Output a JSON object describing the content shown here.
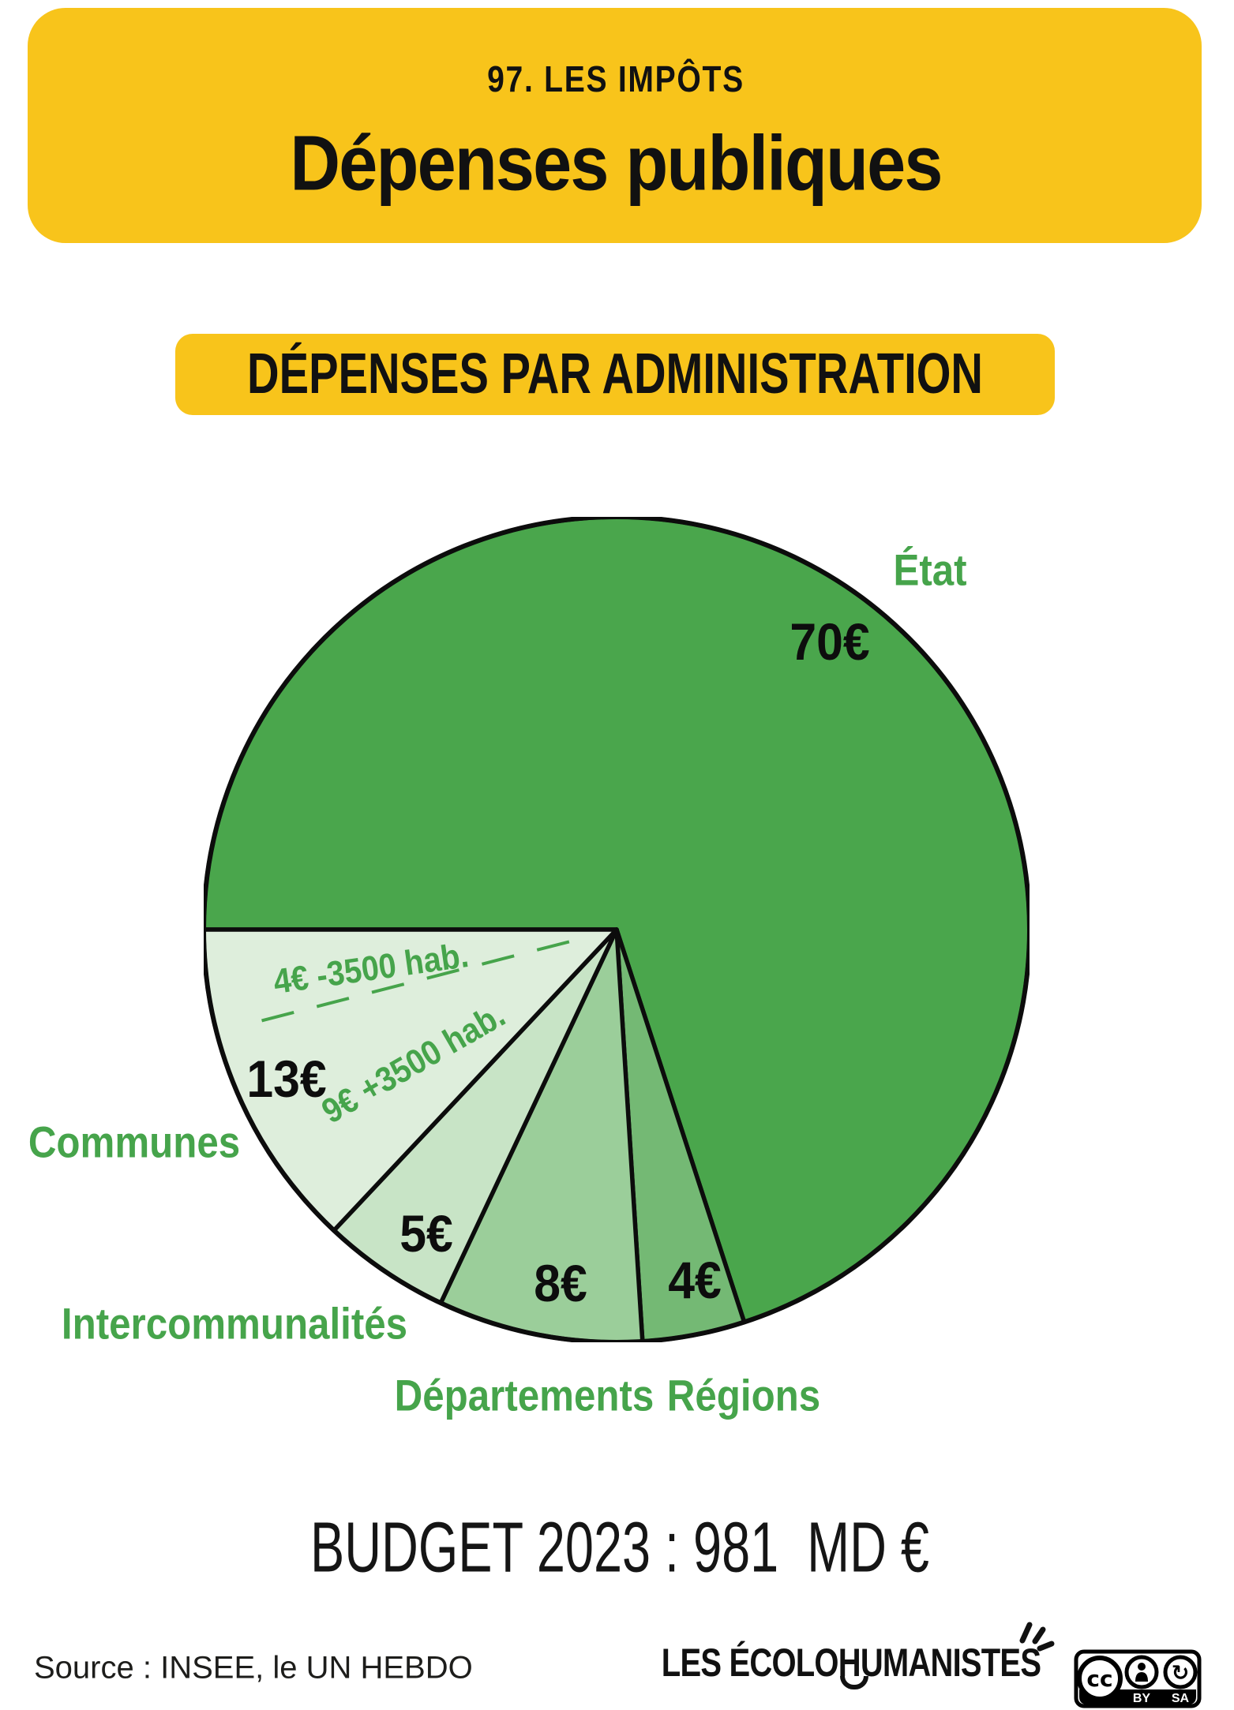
{
  "header": {
    "kicker": "97. LES IMPÔTS",
    "title": "Dépenses publiques"
  },
  "section_title": "DÉPENSES PAR ADMINISTRATION",
  "chart_data": {
    "type": "pie",
    "title": "DÉPENSES PAR ADMINISTRATION",
    "unit": "€",
    "start_angle_deg": 270,
    "direction": "clockwise",
    "legend_position": "around",
    "segments": [
      {
        "label": "État",
        "value": 70,
        "value_label": "70€",
        "color": "#4AA64C"
      },
      {
        "label": "Régions",
        "value": 4,
        "value_label": "4€",
        "color": "#74B974"
      },
      {
        "label": "Départements",
        "value": 8,
        "value_label": "8€",
        "color": "#9BCE9A"
      },
      {
        "label": "Intercommunalités",
        "value": 5,
        "value_label": "5€",
        "color": "#C8E4C6"
      },
      {
        "label": "Communes",
        "value": 13,
        "value_label": "13€",
        "color": "#DEEEDC",
        "breakdown": [
          {
            "label": "4€ -3500 hab.",
            "value": 4
          },
          {
            "label": "9€ +3500 hab.",
            "value": 9
          }
        ]
      }
    ]
  },
  "budget_line": "BUDGET 2023 : 981  MD €",
  "footer": {
    "source": "Source : INSEE, le UN HEBDO",
    "brand": "LES ÉCOLOHUMANISTES",
    "license": {
      "cc": "cc",
      "by": "BY",
      "sa": "SA"
    }
  },
  "colors": {
    "yellow": "#F8C41B",
    "green": "#46A44B",
    "ink": "#111111"
  }
}
